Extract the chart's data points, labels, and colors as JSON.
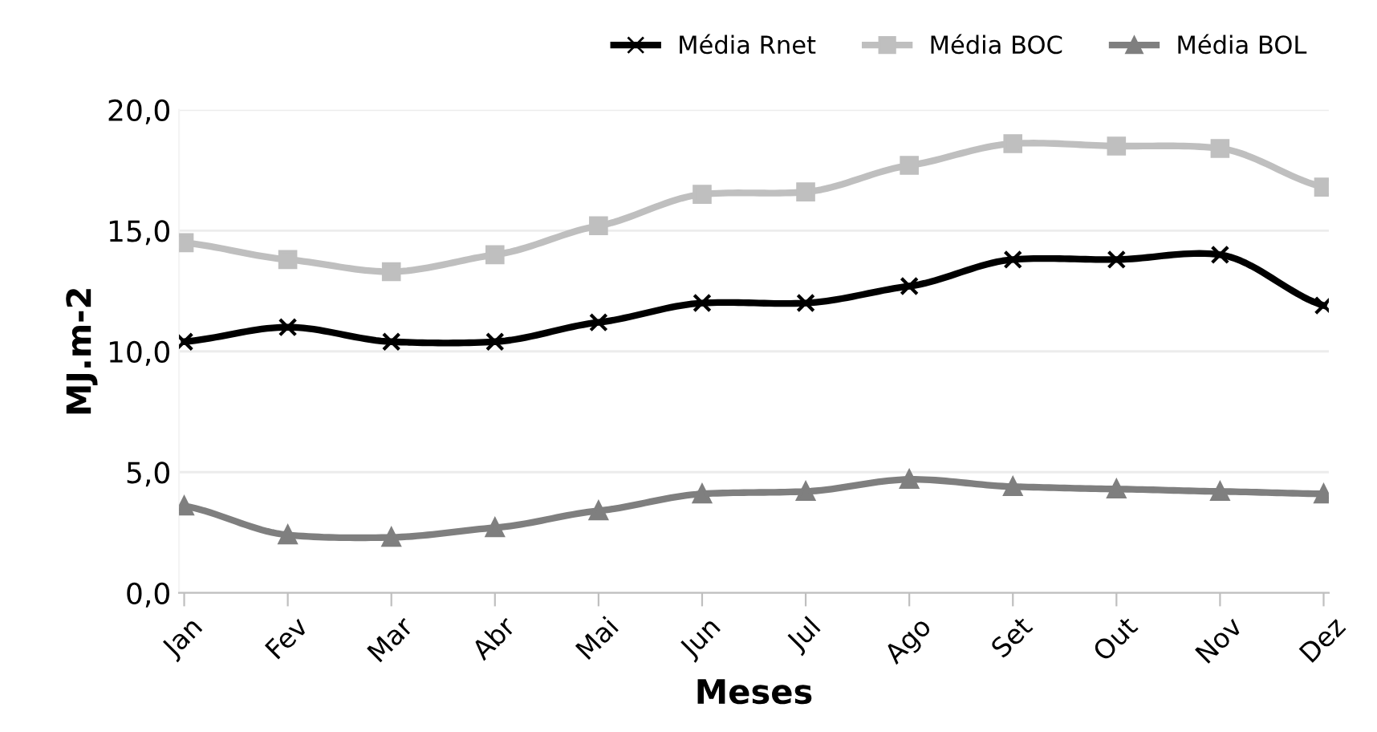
{
  "chart_data": {
    "type": "line",
    "xlabel": "Meses",
    "ylabel": "MJ.m-2",
    "categories": [
      "Jan",
      "Fev",
      "Mar",
      "Abr",
      "Mai",
      "Jun",
      "Jul",
      "Ago",
      "Set",
      "Out",
      "Nov",
      "Dez"
    ],
    "series": [
      {
        "name": "Média Rnet",
        "color": "#000000",
        "marker": "cross",
        "values": [
          10.4,
          11.0,
          10.4,
          10.4,
          11.2,
          12.0,
          12.0,
          12.7,
          13.8,
          13.8,
          14.0,
          11.9
        ]
      },
      {
        "name": "Média BOC",
        "color": "#bfbfbf",
        "marker": "square",
        "values": [
          14.5,
          13.8,
          13.3,
          14.0,
          15.2,
          16.5,
          16.6,
          17.7,
          18.6,
          18.5,
          18.4,
          16.8
        ]
      },
      {
        "name": "Média BOL",
        "color": "#7f7f7f",
        "marker": "triangle",
        "values": [
          3.6,
          2.4,
          2.3,
          2.7,
          3.4,
          4.1,
          4.2,
          4.7,
          4.4,
          4.3,
          4.2,
          4.1
        ]
      }
    ],
    "ylim": [
      0,
      20
    ],
    "yticks": [
      {
        "value": 0,
        "label": "0,0"
      },
      {
        "value": 5,
        "label": "5,0"
      },
      {
        "value": 10,
        "label": "10,0"
      },
      {
        "value": 15,
        "label": "15,0"
      },
      {
        "value": 20,
        "label": "20,0"
      }
    ],
    "grid": "y",
    "legend": "top right",
    "line_style": "solid"
  }
}
